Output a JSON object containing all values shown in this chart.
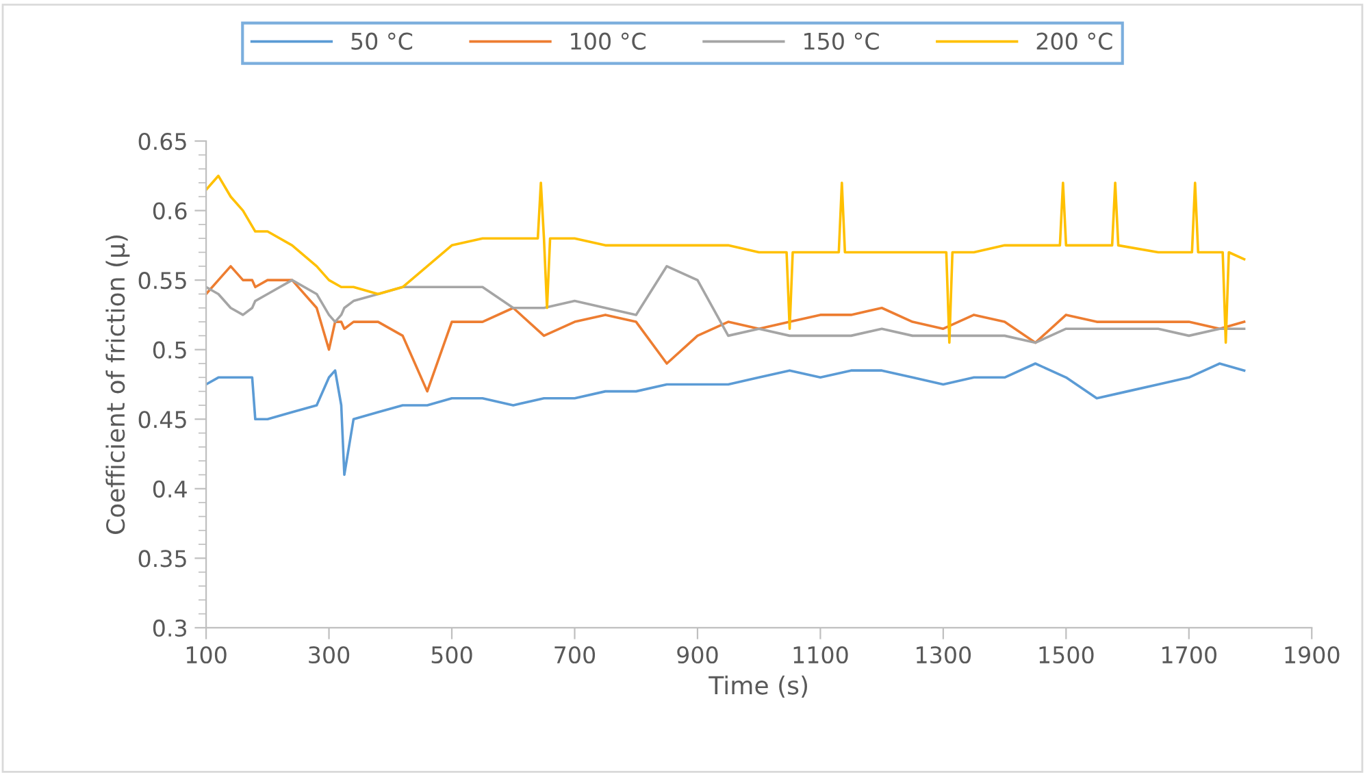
{
  "chart_data": {
    "type": "line",
    "xlabel": "Time (s)",
    "ylabel": "Coefficient of friction (μ)",
    "x": [
      100,
      120,
      140,
      160,
      175,
      180,
      200,
      240,
      280,
      300,
      310,
      320,
      325,
      340,
      380,
      420,
      460,
      500,
      550,
      600,
      650,
      700,
      750,
      800,
      850,
      900,
      950,
      1000,
      1050,
      1100,
      1150,
      1200,
      1250,
      1300,
      1350,
      1400,
      1450,
      1500,
      1550,
      1600,
      1650,
      1700,
      1750,
      1790
    ],
    "series": [
      {
        "name": "50 °C",
        "color": "#5b9bd5",
        "values": [
          0.475,
          0.48,
          0.48,
          0.48,
          0.48,
          0.45,
          0.45,
          0.455,
          0.46,
          0.48,
          0.485,
          0.46,
          0.41,
          0.45,
          0.455,
          0.46,
          0.46,
          0.465,
          0.465,
          0.46,
          0.465,
          0.465,
          0.47,
          0.47,
          0.475,
          0.475,
          0.475,
          0.48,
          0.485,
          0.48,
          0.485,
          0.485,
          0.48,
          0.475,
          0.48,
          0.48,
          0.49,
          0.48,
          0.465,
          0.47,
          0.475,
          0.48,
          0.49,
          0.485
        ]
      },
      {
        "name": "100 °C",
        "color": "#ed7d31",
        "values": [
          0.54,
          0.55,
          0.56,
          0.55,
          0.55,
          0.545,
          0.55,
          0.55,
          0.53,
          0.5,
          0.52,
          0.52,
          0.515,
          0.52,
          0.52,
          0.51,
          0.47,
          0.52,
          0.52,
          0.53,
          0.51,
          0.52,
          0.525,
          0.52,
          0.49,
          0.51,
          0.52,
          0.515,
          0.52,
          0.525,
          0.525,
          0.53,
          0.52,
          0.515,
          0.525,
          0.52,
          0.505,
          0.525,
          0.52,
          0.52,
          0.52,
          0.52,
          0.515,
          0.52
        ]
      },
      {
        "name": "150 °C",
        "color": "#a5a5a5",
        "values": [
          0.545,
          0.54,
          0.53,
          0.525,
          0.53,
          0.535,
          0.54,
          0.55,
          0.54,
          0.525,
          0.52,
          0.525,
          0.53,
          0.535,
          0.54,
          0.545,
          0.545,
          0.545,
          0.545,
          0.53,
          0.53,
          0.535,
          0.53,
          0.525,
          0.56,
          0.55,
          0.51,
          0.515,
          0.51,
          0.51,
          0.51,
          0.515,
          0.51,
          0.51,
          0.51,
          0.51,
          0.505,
          0.515,
          0.515,
          0.515,
          0.515,
          0.51,
          0.515,
          0.515
        ]
      },
      {
        "name": "200 °C",
        "color": "#ffc000",
        "x": [
          100,
          120,
          140,
          160,
          180,
          200,
          240,
          280,
          300,
          320,
          340,
          380,
          420,
          460,
          500,
          550,
          600,
          640,
          645,
          650,
          655,
          660,
          700,
          750,
          800,
          850,
          900,
          950,
          1000,
          1045,
          1050,
          1055,
          1100,
          1130,
          1135,
          1140,
          1200,
          1250,
          1305,
          1310,
          1315,
          1350,
          1400,
          1450,
          1490,
          1495,
          1500,
          1550,
          1575,
          1580,
          1585,
          1650,
          1705,
          1710,
          1715,
          1755,
          1760,
          1765,
          1790
        ],
        "values": [
          0.615,
          0.625,
          0.61,
          0.6,
          0.585,
          0.585,
          0.575,
          0.56,
          0.55,
          0.545,
          0.545,
          0.54,
          0.545,
          0.56,
          0.575,
          0.58,
          0.58,
          0.58,
          0.62,
          0.58,
          0.53,
          0.58,
          0.58,
          0.575,
          0.575,
          0.575,
          0.575,
          0.575,
          0.57,
          0.57,
          0.515,
          0.57,
          0.57,
          0.57,
          0.62,
          0.57,
          0.57,
          0.57,
          0.57,
          0.505,
          0.57,
          0.57,
          0.575,
          0.575,
          0.575,
          0.62,
          0.575,
          0.575,
          0.575,
          0.62,
          0.575,
          0.57,
          0.57,
          0.62,
          0.57,
          0.57,
          0.505,
          0.57,
          0.565
        ]
      }
    ],
    "xlim": [
      100,
      1900
    ],
    "xticks": [
      100,
      300,
      500,
      700,
      900,
      1100,
      1300,
      1500,
      1700,
      1900
    ],
    "ylim": [
      0.3,
      0.65
    ],
    "yticks": [
      {
        "value": 0.3,
        "label": "0.3"
      },
      {
        "value": 0.35,
        "label": "0.35"
      },
      {
        "value": 0.4,
        "label": "0.4"
      },
      {
        "value": 0.45,
        "label": "0.45"
      },
      {
        "value": 0.5,
        "label": "0.5"
      },
      {
        "value": 0.55,
        "label": "0.55"
      },
      {
        "value": 0.6,
        "label": "0.6"
      },
      {
        "value": 0.65,
        "label": "0.65"
      }
    ],
    "grid": false,
    "legend": "top",
    "marker": "none",
    "line_style": "solid"
  }
}
